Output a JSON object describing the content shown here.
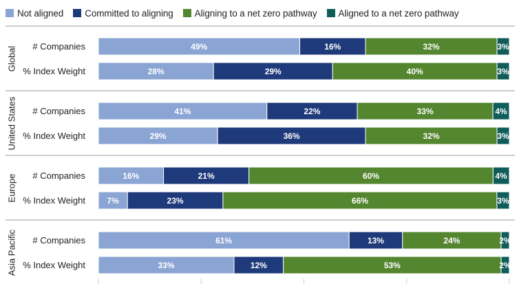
{
  "chart_data": {
    "type": "bar",
    "orientation": "horizontal",
    "stacked": true,
    "percent_scale": [
      0,
      100
    ],
    "legend_position": "top-left",
    "grid": false,
    "series": [
      {
        "name": "Not aligned",
        "color": "#8aa4d3"
      },
      {
        "name": "Committed to aligning",
        "color": "#1f3a7a"
      },
      {
        "name": "Aligning to a net zero pathway",
        "color": "#53862f"
      },
      {
        "name": "Aligned to a net zero pathway",
        "color": "#0f5c5a"
      }
    ],
    "groups": [
      {
        "name": "Global",
        "rows": [
          {
            "label": "# Companies",
            "values": [
              49,
              16,
              32,
              3
            ]
          },
          {
            "label": "% Index Weight",
            "values": [
              28,
              29,
              40,
              3
            ]
          }
        ]
      },
      {
        "name": "United States",
        "rows": [
          {
            "label": "# Companies",
            "values": [
              41,
              22,
              33,
              4
            ]
          },
          {
            "label": "% Index Weight",
            "values": [
              29,
              36,
              32,
              3
            ]
          }
        ]
      },
      {
        "name": "Europe",
        "rows": [
          {
            "label": "# Companies",
            "values": [
              16,
              21,
              60,
              4
            ]
          },
          {
            "label": "% Index Weight",
            "values": [
              7,
              23,
              66,
              3
            ]
          }
        ]
      },
      {
        "name": "Asia Pacific",
        "rows": [
          {
            "label": "# Companies",
            "values": [
              61,
              13,
              24,
              2
            ]
          },
          {
            "label": "% Index Weight",
            "values": [
              33,
              12,
              53,
              2
            ]
          }
        ]
      }
    ]
  }
}
